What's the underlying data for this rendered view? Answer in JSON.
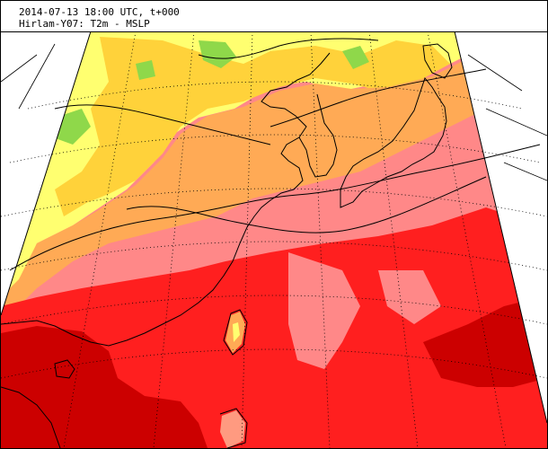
{
  "header": {
    "line1": "2014-07-13 18:00 UTC, t+000",
    "line2": "Hirlam-Y07: T2m - MSLP"
  },
  "map": {
    "colors": {
      "background": "#ffffff",
      "green": "#8fd84a",
      "yellow": "#ffff70",
      "gold": "#ffd23a",
      "orange": "#ffaa55",
      "salmon": "#ff9a80",
      "pink": "#ff8888",
      "red": "#ff1f1f",
      "darkred": "#cc0000",
      "lines": "#000000"
    }
  }
}
